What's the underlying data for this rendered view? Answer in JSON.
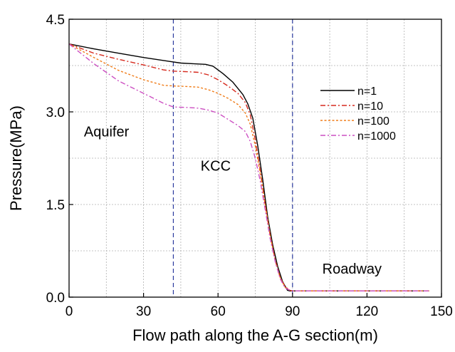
{
  "chart_data": {
    "type": "line",
    "title": "",
    "xlabel": "Flow path along the A-G section(m)",
    "ylabel": "Pressure(MPa)",
    "xlim": [
      0,
      150
    ],
    "ylim": [
      0,
      4.5
    ],
    "xticks": [
      0,
      30,
      60,
      90,
      120,
      150
    ],
    "yticks": [
      0,
      1.5,
      3.0,
      4.5
    ],
    "xtick_labels": [
      "0",
      "30",
      "60",
      "90",
      "120",
      "150"
    ],
    "ytick_labels": [
      "0.0",
      "1.5",
      "3.0",
      "4.5"
    ],
    "grid": true,
    "legend_position": "top-right",
    "vertical_markers": [
      42,
      90
    ],
    "annotations": [
      {
        "text": "Aquifer",
        "x": 6,
        "y": 2.6
      },
      {
        "text": "KCC",
        "x": 53,
        "y": 2.05
      },
      {
        "text": "Roadway",
        "x": 102,
        "y": 0.38
      }
    ],
    "series": [
      {
        "name": "n=1",
        "color": "#000000",
        "dash": "solid",
        "points": [
          [
            0,
            4.1
          ],
          [
            10,
            4.02
          ],
          [
            20,
            3.95
          ],
          [
            30,
            3.88
          ],
          [
            40,
            3.82
          ],
          [
            45,
            3.79
          ],
          [
            50,
            3.78
          ],
          [
            55,
            3.77
          ],
          [
            58,
            3.74
          ],
          [
            62,
            3.62
          ],
          [
            66,
            3.48
          ],
          [
            70,
            3.28
          ],
          [
            72,
            3.13
          ],
          [
            74,
            2.9
          ],
          [
            76,
            2.45
          ],
          [
            78,
            1.9
          ],
          [
            80,
            1.3
          ],
          [
            82,
            0.85
          ],
          [
            84,
            0.5
          ],
          [
            86,
            0.25
          ],
          [
            88,
            0.11
          ],
          [
            89,
            0.1
          ],
          [
            90,
            0.1
          ],
          [
            100,
            0.1
          ],
          [
            120,
            0.1
          ],
          [
            145,
            0.1
          ]
        ]
      },
      {
        "name": "n=10",
        "color": "#d62a1e",
        "dash": "dash-dot",
        "points": [
          [
            0,
            4.1
          ],
          [
            10,
            3.95
          ],
          [
            20,
            3.85
          ],
          [
            30,
            3.76
          ],
          [
            38,
            3.68
          ],
          [
            42,
            3.66
          ],
          [
            48,
            3.65
          ],
          [
            52,
            3.64
          ],
          [
            56,
            3.6
          ],
          [
            60,
            3.52
          ],
          [
            64,
            3.42
          ],
          [
            68,
            3.3
          ],
          [
            71,
            3.15
          ],
          [
            73,
            2.95
          ],
          [
            75,
            2.55
          ],
          [
            77,
            2.05
          ],
          [
            79,
            1.5
          ],
          [
            81,
            1.0
          ],
          [
            83,
            0.6
          ],
          [
            85,
            0.32
          ],
          [
            87,
            0.17
          ],
          [
            89,
            0.11
          ],
          [
            90,
            0.1
          ],
          [
            145,
            0.1
          ]
        ]
      },
      {
        "name": "n=100",
        "color": "#f07d1a",
        "dash": "dotted",
        "points": [
          [
            0,
            4.1
          ],
          [
            10,
            3.88
          ],
          [
            20,
            3.67
          ],
          [
            30,
            3.52
          ],
          [
            38,
            3.43
          ],
          [
            42,
            3.42
          ],
          [
            48,
            3.41
          ],
          [
            52,
            3.4
          ],
          [
            56,
            3.36
          ],
          [
            60,
            3.3
          ],
          [
            64,
            3.22
          ],
          [
            68,
            3.12
          ],
          [
            71,
            2.98
          ],
          [
            73,
            2.8
          ],
          [
            75,
            2.45
          ],
          [
            77,
            2.0
          ],
          [
            79,
            1.5
          ],
          [
            81,
            1.0
          ],
          [
            83,
            0.6
          ],
          [
            85,
            0.32
          ],
          [
            87,
            0.16
          ],
          [
            89,
            0.11
          ],
          [
            90,
            0.1
          ],
          [
            145,
            0.1
          ]
        ]
      },
      {
        "name": "n=1000",
        "color": "#cc4fc2",
        "dash": "dash-dot",
        "points": [
          [
            0,
            4.1
          ],
          [
            10,
            3.78
          ],
          [
            20,
            3.5
          ],
          [
            30,
            3.3
          ],
          [
            38,
            3.14
          ],
          [
            42,
            3.08
          ],
          [
            48,
            3.07
          ],
          [
            52,
            3.06
          ],
          [
            56,
            3.03
          ],
          [
            60,
            2.98
          ],
          [
            64,
            2.88
          ],
          [
            68,
            2.78
          ],
          [
            71,
            2.68
          ],
          [
            73,
            2.52
          ],
          [
            75,
            2.25
          ],
          [
            77,
            1.88
          ],
          [
            79,
            1.42
          ],
          [
            81,
            0.95
          ],
          [
            83,
            0.58
          ],
          [
            85,
            0.3
          ],
          [
            87,
            0.15
          ],
          [
            89,
            0.11
          ],
          [
            90,
            0.1
          ],
          [
            145,
            0.1
          ]
        ]
      }
    ]
  }
}
